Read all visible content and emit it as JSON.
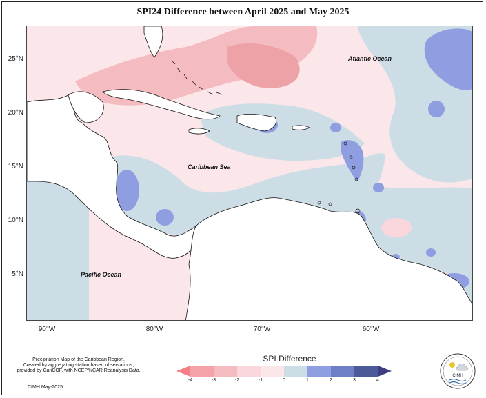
{
  "title": "SPI24 Difference between April 2025 and May 2025",
  "axes": {
    "latitude_labels": [
      "25°N",
      "20°N",
      "15°N",
      "10°N",
      "5°N"
    ],
    "longitude_labels": [
      "90°W",
      "80°W",
      "70°W",
      "60°W"
    ]
  },
  "ocean_labels": {
    "atlantic": "Atlantic Ocean",
    "caribbean": "Caribbean Sea",
    "pacific": "Pacific Ocean"
  },
  "footer": {
    "note_lines": [
      "Precipitation Map of the Caribbean Region.",
      "Created by aggregating station based observations,",
      "provided by CariCOF, with NCEP/NCAR Reanalysis Data."
    ],
    "version": "CIMH May-2025"
  },
  "legend": {
    "title": "SPI Difference",
    "ticks": [
      "-4",
      "-3",
      "-2",
      "-1",
      "0",
      "1",
      "2",
      "3",
      "4"
    ],
    "colors": [
      "#f47f86",
      "#f5a3a8",
      "#f4bcc1",
      "#fad7dc",
      "#fbe7ea",
      "#cddde6",
      "#8e9ee0",
      "#6f7fc6",
      "#4d5a9a",
      "#3b3f82"
    ]
  },
  "logo": {
    "text": "CIMH"
  }
}
